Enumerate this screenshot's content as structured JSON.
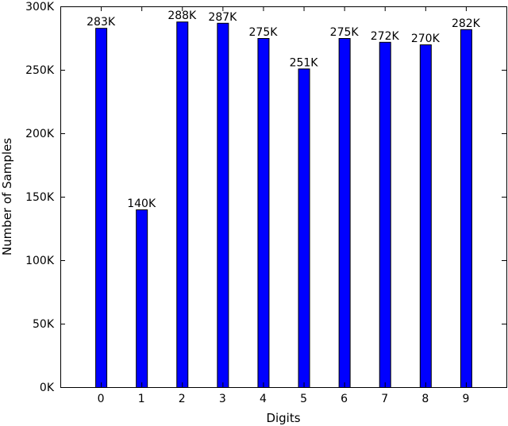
{
  "chart_data": {
    "type": "bar",
    "title": "",
    "xlabel": "Digits",
    "ylabel": "Number of Samples",
    "categories": [
      "0",
      "1",
      "2",
      "3",
      "4",
      "5",
      "6",
      "7",
      "8",
      "9"
    ],
    "values": [
      283000,
      140000,
      288000,
      287000,
      275000,
      251000,
      275000,
      272000,
      270000,
      282000
    ],
    "value_labels": [
      "283K",
      "140K",
      "288K",
      "287K",
      "275K",
      "251K",
      "275K",
      "272K",
      "270K",
      "282K"
    ],
    "ylim": [
      0,
      300000
    ],
    "yticks": [
      0,
      50000,
      100000,
      150000,
      200000,
      250000,
      300000
    ],
    "ytick_labels": [
      "0K",
      "50K",
      "100K",
      "150K",
      "200K",
      "250K",
      "300K"
    ],
    "grid": false,
    "bar_color": "#0000ff",
    "bar_edge_color": "#000000"
  }
}
